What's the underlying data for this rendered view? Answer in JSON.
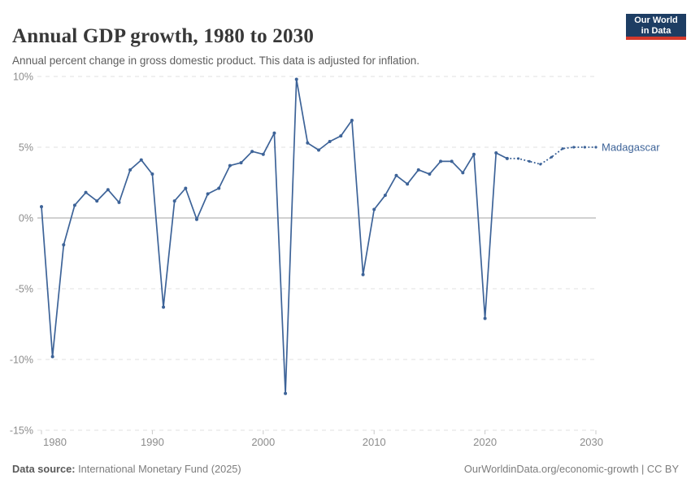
{
  "header": {
    "title": "Annual GDP growth, 1980 to 2030",
    "subtitle": "Annual percent change in gross domestic product. This data is adjusted for inflation.",
    "logo": {
      "line1": "Our World",
      "line2": "in Data",
      "bg_color": "#1d3d63",
      "accent_color": "#d4392b"
    }
  },
  "chart_data": {
    "type": "line",
    "title": "Annual GDP growth, 1980 to 2030",
    "entity": "Madagascar",
    "unit": "%",
    "xlabel": "",
    "ylabel": "Annual percent change in GDP",
    "xlim": [
      1980,
      2030
    ],
    "ylim": [
      -15,
      10
    ],
    "xticks": [
      1980,
      1990,
      2000,
      2010,
      2020,
      2030
    ],
    "yticks": [
      10,
      5,
      0,
      -5,
      -10,
      -15
    ],
    "grid": "horizontal-dashed",
    "legend_position": "end-of-line-label",
    "line_color": "#3d6398",
    "projection_from_year": 2022,
    "x": [
      1980,
      1981,
      1982,
      1983,
      1984,
      1985,
      1986,
      1987,
      1988,
      1989,
      1990,
      1991,
      1992,
      1993,
      1994,
      1995,
      1996,
      1997,
      1998,
      1999,
      2000,
      2001,
      2002,
      2003,
      2004,
      2005,
      2006,
      2007,
      2008,
      2009,
      2010,
      2011,
      2012,
      2013,
      2014,
      2015,
      2016,
      2017,
      2018,
      2019,
      2020,
      2021,
      2022,
      2023,
      2024,
      2025,
      2026,
      2027,
      2028,
      2029,
      2030
    ],
    "values": [
      0.8,
      -9.8,
      -1.9,
      0.9,
      1.8,
      1.2,
      2.0,
      1.1,
      3.4,
      4.1,
      3.1,
      -6.3,
      1.2,
      2.1,
      -0.1,
      1.7,
      2.1,
      3.7,
      3.9,
      4.7,
      4.5,
      6.0,
      -12.4,
      9.8,
      5.3,
      4.8,
      5.4,
      5.8,
      6.9,
      -4.0,
      0.6,
      1.6,
      3.0,
      2.4,
      3.4,
      3.1,
      4.0,
      4.0,
      3.2,
      4.5,
      -7.1,
      4.6,
      4.2,
      4.2,
      4.0,
      3.8,
      4.3,
      4.9,
      5.0,
      5.0,
      5.0
    ]
  },
  "footer": {
    "source_label": "Data source:",
    "source": " International Monetary Fund (2025)",
    "link": "OurWorldinData.org/economic-growth",
    "license": " | CC BY"
  }
}
